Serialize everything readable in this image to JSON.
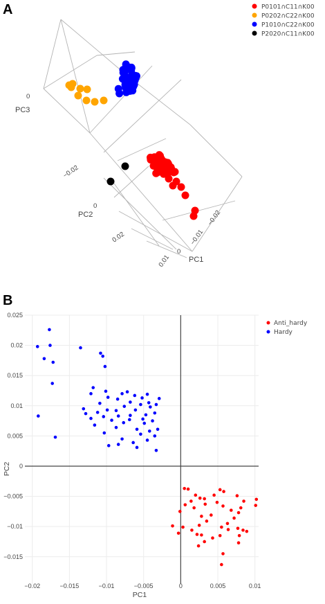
{
  "figure": {
    "panel_a_label": "A",
    "panel_b_label": "B"
  },
  "chart_data": [
    {
      "type": "scatter",
      "title": "",
      "axes": {
        "x": "PC1",
        "y": "PC2",
        "z": "PC3"
      },
      "ticks": {
        "pc1": [
          "−0.02",
          "−0.01",
          "0",
          "0.01"
        ],
        "pc2": [
          "−0.02",
          "0",
          "0.02"
        ],
        "pc3": [
          "0"
        ]
      },
      "legend_position": "top-right",
      "series": [
        {
          "name": "P0101∩C11∩K00",
          "color": "#ff0000"
        },
        {
          "name": "P0202∩C22∩K00",
          "color": "#ffa500"
        },
        {
          "name": "P1010∩C22∩K00",
          "color": "#0000ff"
        },
        {
          "name": "P2020∩C11∩K00",
          "color": "#000000"
        }
      ]
    },
    {
      "type": "scatter",
      "title": "",
      "xlabel": "PC1",
      "ylabel": "PC2",
      "xlim": [
        -0.021,
        0.0105
      ],
      "ylim": [
        -0.0195,
        0.025
      ],
      "xticks": [
        -0.02,
        -0.015,
        -0.01,
        -0.005,
        0,
        0.005,
        0.01
      ],
      "xtick_labels": [
        "−0.02",
        "−0.015",
        "−0.01",
        "−0.005",
        "0",
        "0.005",
        "0.01"
      ],
      "yticks": [
        -0.015,
        -0.01,
        -0.005,
        0,
        0.005,
        0.01,
        0.015,
        0.02,
        0.025
      ],
      "ytick_labels": [
        "−0.015",
        "−0.01",
        "−0.005",
        "0",
        "0.005",
        "0.01",
        "0.015",
        "0.02",
        "0.025"
      ],
      "grid": true,
      "legend_position": "top-right",
      "series": [
        {
          "name": "Anti_hardy",
          "color": "#ff0000",
          "points": [
            [
              0.0005,
              -0.0037
            ],
            [
              0.001,
              -0.0038
            ],
            [
              0.0053,
              -0.0039
            ],
            [
              0.0058,
              -0.0042
            ],
            [
              0.002,
              -0.0048
            ],
            [
              0.0045,
              -0.0048
            ],
            [
              0.0076,
              -0.0049
            ],
            [
              0.0026,
              -0.0053
            ],
            [
              0.0032,
              -0.0054
            ],
            [
              0.0102,
              -0.0055
            ],
            [
              0.0014,
              -0.0058
            ],
            [
              0.0085,
              -0.0058
            ],
            [
              0.0049,
              -0.006
            ],
            [
              0.0033,
              -0.0063
            ],
            [
              0.0006,
              -0.0064
            ],
            [
              0.0101,
              -0.0065
            ],
            [
              0.0057,
              -0.0066
            ],
            [
              0.0018,
              -0.0069
            ],
            [
              0.0081,
              -0.0069
            ],
            [
              0.0068,
              -0.0073
            ],
            [
              -0.0001,
              -0.0075
            ],
            [
              0.0078,
              -0.0077
            ],
            [
              0.0041,
              -0.0081
            ],
            [
              0.0028,
              -0.0083
            ],
            [
              0.0072,
              -0.0086
            ],
            [
              0.0035,
              -0.0091
            ],
            [
              0.0063,
              -0.0095
            ],
            [
              0.0025,
              -0.0098
            ],
            [
              -0.0011,
              -0.0099
            ],
            [
              0.0003,
              -0.0101
            ],
            [
              0.0055,
              -0.0101
            ],
            [
              0.0077,
              -0.0103
            ],
            [
              0.0064,
              -0.0105
            ],
            [
              0.0084,
              -0.0106
            ],
            [
              0.0015,
              -0.0106
            ],
            [
              0.0089,
              -0.0108
            ],
            [
              -0.0003,
              -0.0111
            ],
            [
              0.0022,
              -0.0113
            ],
            [
              0.0028,
              -0.0114
            ],
            [
              0.0079,
              -0.0115
            ],
            [
              0.0053,
              -0.0115
            ],
            [
              0.0043,
              -0.0119
            ],
            [
              0.0032,
              -0.0125
            ],
            [
              0.0078,
              -0.0127
            ],
            [
              0.0024,
              -0.0132
            ],
            [
              0.0057,
              -0.0145
            ],
            [
              0.0055,
              -0.0163
            ]
          ]
        },
        {
          "name": "Hardy",
          "color": "#0000ff",
          "points": [
            [
              -0.0177,
              0.0226
            ],
            [
              -0.0176,
              0.02
            ],
            [
              -0.0193,
              0.0198
            ],
            [
              -0.0135,
              0.0196
            ],
            [
              -0.0108,
              0.0187
            ],
            [
              -0.0105,
              0.0182
            ],
            [
              -0.0184,
              0.0178
            ],
            [
              -0.0172,
              0.0172
            ],
            [
              -0.0102,
              0.0165
            ],
            [
              -0.0173,
              0.0137
            ],
            [
              -0.0118,
              0.013
            ],
            [
              -0.0101,
              0.0124
            ],
            [
              -0.0072,
              0.0123
            ],
            [
              -0.0121,
              0.012
            ],
            [
              -0.0079,
              0.012
            ],
            [
              -0.0045,
              0.0119
            ],
            [
              -0.0062,
              0.0117
            ],
            [
              -0.0098,
              0.0114
            ],
            [
              -0.0052,
              0.0113
            ],
            [
              -0.0029,
              0.0112
            ],
            [
              -0.0085,
              0.0111
            ],
            [
              -0.0068,
              0.0106
            ],
            [
              -0.0043,
              0.0105
            ],
            [
              -0.0109,
              0.0104
            ],
            [
              -0.0054,
              0.0102
            ],
            [
              -0.0033,
              0.0102
            ],
            [
              -0.0076,
              0.0099
            ],
            [
              -0.0041,
              0.0098
            ],
            [
              -0.0131,
              0.0095
            ],
            [
              -0.0099,
              0.0093
            ],
            [
              -0.0061,
              0.0093
            ],
            [
              -0.0087,
              0.0092
            ],
            [
              -0.0112,
              0.0089
            ],
            [
              -0.0035,
              0.0088
            ],
            [
              -0.0128,
              0.0087
            ],
            [
              -0.0047,
              0.0085
            ],
            [
              -0.0068,
              0.0084
            ],
            [
              -0.0192,
              0.0083
            ],
            [
              -0.0084,
              0.0083
            ],
            [
              -0.0104,
              0.0082
            ],
            [
              -0.0121,
              0.0079
            ],
            [
              -0.0051,
              0.0078
            ],
            [
              -0.0069,
              0.0077
            ],
            [
              -0.0093,
              0.0076
            ],
            [
              -0.0038,
              0.0075
            ],
            [
              -0.0077,
              0.0072
            ],
            [
              -0.0049,
              0.0071
            ],
            [
              -0.0116,
              0.0068
            ],
            [
              -0.0087,
              0.0064
            ],
            [
              -0.0059,
              0.0061
            ],
            [
              -0.0031,
              0.0061
            ],
            [
              -0.0042,
              0.0058
            ],
            [
              -0.0103,
              0.0055
            ],
            [
              -0.0054,
              0.0053
            ],
            [
              -0.0035,
              0.005
            ],
            [
              -0.0169,
              0.0048
            ],
            [
              -0.0079,
              0.0045
            ],
            [
              -0.0045,
              0.0043
            ],
            [
              -0.0064,
              0.0039
            ],
            [
              -0.0084,
              0.0036
            ],
            [
              -0.0097,
              0.0034
            ],
            [
              -0.0059,
              0.0031
            ],
            [
              -0.0033,
              0.0026
            ]
          ]
        }
      ]
    }
  ]
}
